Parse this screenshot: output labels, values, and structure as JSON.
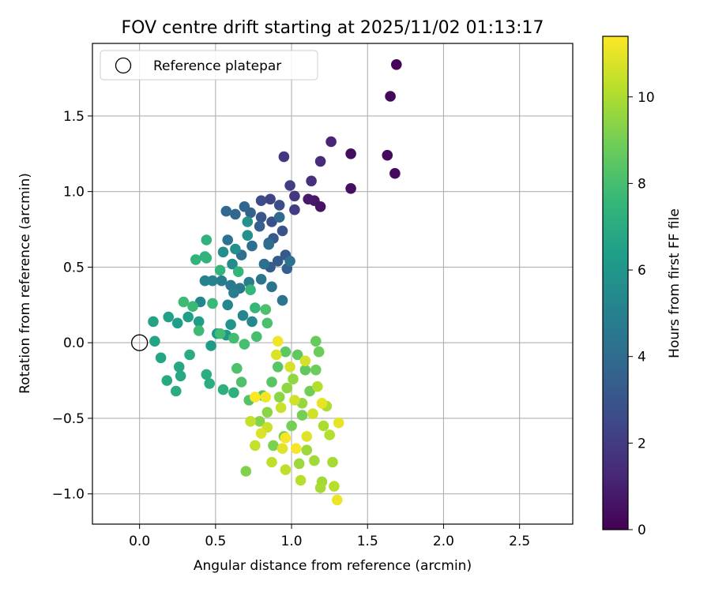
{
  "chart_data": {
    "type": "scatter",
    "title": "FOV centre drift starting at 2025/11/02 01:13:17",
    "xlabel": "Angular distance from reference (arcmin)",
    "ylabel": "Rotation from reference (arcmin)",
    "xlim": [
      -0.31,
      2.85
    ],
    "ylim": [
      -1.2,
      1.98
    ],
    "x_ticks": [
      0.0,
      0.5,
      1.0,
      1.5,
      2.0,
      2.5
    ],
    "x_tick_labels": [
      "0.0",
      "0.5",
      "1.0",
      "1.5",
      "2.0",
      "2.5"
    ],
    "y_ticks": [
      -1.0,
      -0.5,
      0.0,
      0.5,
      1.0,
      1.5
    ],
    "y_tick_labels": [
      "−1.0",
      "−0.5",
      "0.0",
      "0.5",
      "1.0",
      "1.5"
    ],
    "grid": true,
    "legend": {
      "location": "top-left",
      "entries": [
        "Reference platepar"
      ]
    },
    "reference_point": {
      "label": "Reference platepar",
      "x": 0.0,
      "y": 0.0
    },
    "colorbar": {
      "label": "Hours from first FF file",
      "colormap": "viridis",
      "range": [
        0,
        11.4
      ],
      "ticks": [
        0,
        2,
        4,
        6,
        8,
        10
      ],
      "tick_labels": [
        "0",
        "2",
        "4",
        "6",
        "8",
        "10"
      ]
    },
    "points": [
      [
        1.69,
        1.84,
        0.1
      ],
      [
        1.65,
        1.63,
        0.2
      ],
      [
        1.63,
        1.24,
        0.3
      ],
      [
        1.68,
        1.12,
        0.3
      ],
      [
        1.39,
        1.25,
        0.4
      ],
      [
        1.39,
        1.02,
        0.5
      ],
      [
        1.19,
        0.9,
        0.6
      ],
      [
        1.15,
        0.94,
        0.7
      ],
      [
        1.11,
        0.95,
        0.8
      ],
      [
        1.26,
        1.33,
        1.2
      ],
      [
        1.19,
        1.2,
        1.4
      ],
      [
        1.13,
        1.07,
        1.6
      ],
      [
        1.02,
        0.97,
        1.8
      ],
      [
        0.95,
        1.23,
        1.9
      ],
      [
        1.02,
        0.88,
        2.0
      ],
      [
        0.99,
        1.04,
        2.1
      ],
      [
        0.86,
        0.95,
        2.3
      ],
      [
        0.8,
        0.94,
        2.6
      ],
      [
        0.92,
        0.91,
        2.7
      ],
      [
        0.87,
        0.8,
        2.8
      ],
      [
        0.94,
        0.74,
        2.9
      ],
      [
        0.8,
        0.83,
        3.0
      ],
      [
        0.88,
        0.69,
        3.1
      ],
      [
        0.96,
        0.58,
        3.2
      ],
      [
        0.91,
        0.54,
        3.2
      ],
      [
        0.86,
        0.5,
        3.3
      ],
      [
        0.97,
        0.49,
        3.4
      ],
      [
        0.85,
        0.66,
        3.5
      ],
      [
        0.79,
        0.77,
        3.5
      ],
      [
        0.73,
        0.86,
        3.6
      ],
      [
        0.69,
        0.9,
        3.7
      ],
      [
        0.63,
        0.85,
        3.8
      ],
      [
        0.57,
        0.87,
        3.9
      ],
      [
        0.92,
        0.83,
        3.9
      ],
      [
        0.85,
        0.65,
        4.0
      ],
      [
        0.82,
        0.52,
        4.1
      ],
      [
        0.74,
        0.64,
        4.1
      ],
      [
        0.67,
        0.58,
        4.2
      ],
      [
        0.58,
        0.68,
        4.3
      ],
      [
        0.99,
        0.54,
        4.3
      ],
      [
        0.87,
        0.37,
        4.4
      ],
      [
        0.94,
        0.28,
        4.5
      ],
      [
        0.8,
        0.42,
        4.5
      ],
      [
        0.66,
        0.36,
        4.6
      ],
      [
        0.6,
        0.38,
        4.7
      ],
      [
        0.72,
        0.4,
        4.8
      ],
      [
        0.62,
        0.33,
        4.8
      ],
      [
        0.54,
        0.41,
        4.9
      ],
      [
        0.48,
        0.41,
        5.0
      ],
      [
        0.43,
        0.41,
        5.1
      ],
      [
        0.4,
        0.27,
        5.2
      ],
      [
        0.58,
        0.25,
        5.3
      ],
      [
        0.68,
        0.18,
        5.3
      ],
      [
        0.74,
        0.14,
        5.4
      ],
      [
        0.61,
        0.52,
        5.5
      ],
      [
        0.55,
        0.6,
        5.6
      ],
      [
        0.63,
        0.62,
        5.6
      ],
      [
        0.71,
        0.71,
        5.7
      ],
      [
        0.71,
        0.8,
        5.8
      ],
      [
        0.6,
        0.12,
        5.9
      ],
      [
        0.57,
        0.05,
        6.0
      ],
      [
        0.51,
        0.06,
        6.1
      ],
      [
        0.47,
        -0.02,
        6.2
      ],
      [
        0.39,
        0.14,
        6.3
      ],
      [
        0.32,
        0.17,
        6.4
      ],
      [
        0.25,
        0.13,
        6.4
      ],
      [
        0.19,
        0.17,
        6.5
      ],
      [
        0.09,
        0.14,
        6.6
      ],
      [
        0.1,
        0.01,
        6.6
      ],
      [
        0.14,
        -0.1,
        6.7
      ],
      [
        0.26,
        -0.16,
        6.8
      ],
      [
        0.27,
        -0.22,
        6.8
      ],
      [
        0.18,
        -0.25,
        6.9
      ],
      [
        0.24,
        -0.32,
        7.0
      ],
      [
        0.33,
        -0.08,
        7.0
      ],
      [
        0.44,
        -0.21,
        7.1
      ],
      [
        0.46,
        -0.27,
        7.1
      ],
      [
        0.55,
        -0.31,
        7.2
      ],
      [
        0.62,
        -0.33,
        7.2
      ],
      [
        0.44,
        0.68,
        7.3
      ],
      [
        0.43,
        0.57,
        7.3
      ],
      [
        0.37,
        0.55,
        7.4
      ],
      [
        0.44,
        0.56,
        7.4
      ],
      [
        0.53,
        0.48,
        7.5
      ],
      [
        0.65,
        0.47,
        7.5
      ],
      [
        0.73,
        0.35,
        7.6
      ],
      [
        0.76,
        0.23,
        7.6
      ],
      [
        0.48,
        0.26,
        7.7
      ],
      [
        0.35,
        0.24,
        7.7
      ],
      [
        0.29,
        0.27,
        7.8
      ],
      [
        0.39,
        0.08,
        7.8
      ],
      [
        0.53,
        0.06,
        7.9
      ],
      [
        0.62,
        0.03,
        7.9
      ],
      [
        0.69,
        -0.01,
        8.0
      ],
      [
        0.77,
        0.04,
        8.0
      ],
      [
        0.84,
        0.13,
        8.1
      ],
      [
        0.83,
        0.22,
        8.1
      ],
      [
        0.64,
        -0.17,
        8.2
      ],
      [
        0.67,
        -0.26,
        8.2
      ],
      [
        0.72,
        -0.38,
        8.3
      ],
      [
        0.81,
        -0.35,
        8.3
      ],
      [
        0.87,
        -0.26,
        8.4
      ],
      [
        0.91,
        -0.16,
        8.4
      ],
      [
        0.96,
        -0.06,
        8.5
      ],
      [
        1.04,
        -0.08,
        8.6
      ],
      [
        1.09,
        -0.18,
        8.6
      ],
      [
        1.16,
        0.01,
        8.7
      ],
      [
        1.18,
        -0.06,
        8.8
      ],
      [
        1.16,
        -0.18,
        8.8
      ],
      [
        1.12,
        -0.32,
        8.9
      ],
      [
        1.07,
        -0.48,
        9.0
      ],
      [
        1.0,
        -0.55,
        9.0
      ],
      [
        0.95,
        -0.62,
        9.1
      ],
      [
        0.88,
        -0.68,
        9.1
      ],
      [
        0.7,
        -0.85,
        9.2
      ],
      [
        0.79,
        -0.52,
        9.3
      ],
      [
        0.84,
        -0.46,
        9.4
      ],
      [
        0.92,
        -0.36,
        9.4
      ],
      [
        0.97,
        -0.3,
        9.5
      ],
      [
        1.01,
        -0.24,
        9.5
      ],
      [
        1.07,
        -0.4,
        9.6
      ],
      [
        1.1,
        -0.71,
        9.7
      ],
      [
        1.05,
        -0.8,
        9.7
      ],
      [
        1.15,
        -0.78,
        9.8
      ],
      [
        1.2,
        -0.92,
        9.8
      ],
      [
        1.19,
        -0.96,
        9.9
      ],
      [
        1.27,
        -0.79,
        9.9
      ],
      [
        1.21,
        -0.55,
        10.0
      ],
      [
        1.23,
        -0.42,
        10.0
      ],
      [
        1.17,
        -0.29,
        10.1
      ],
      [
        1.25,
        -0.61,
        10.1
      ],
      [
        1.28,
        -0.95,
        10.2
      ],
      [
        1.06,
        -0.91,
        10.2
      ],
      [
        0.96,
        -0.84,
        10.3
      ],
      [
        0.87,
        -0.79,
        10.3
      ],
      [
        0.76,
        -0.68,
        10.4
      ],
      [
        0.73,
        -0.52,
        10.4
      ],
      [
        0.84,
        -0.56,
        10.5
      ],
      [
        0.93,
        -0.43,
        10.5
      ],
      [
        1.02,
        -0.38,
        10.6
      ],
      [
        1.14,
        -0.47,
        10.6
      ],
      [
        1.09,
        -0.12,
        10.7
      ],
      [
        0.99,
        -0.16,
        10.7
      ],
      [
        0.9,
        -0.08,
        10.8
      ],
      [
        0.8,
        -0.6,
        10.8
      ],
      [
        0.94,
        -0.7,
        10.9
      ],
      [
        1.1,
        -0.62,
        10.9
      ],
      [
        1.2,
        -0.4,
        11.0
      ],
      [
        1.31,
        -0.53,
        11.0
      ],
      [
        1.3,
        -1.04,
        11.1
      ],
      [
        0.91,
        0.01,
        11.2
      ],
      [
        0.83,
        -0.36,
        11.2
      ],
      [
        0.96,
        -0.63,
        11.3
      ],
      [
        1.03,
        -0.7,
        11.3
      ],
      [
        0.76,
        -0.36,
        11.4
      ]
    ]
  }
}
